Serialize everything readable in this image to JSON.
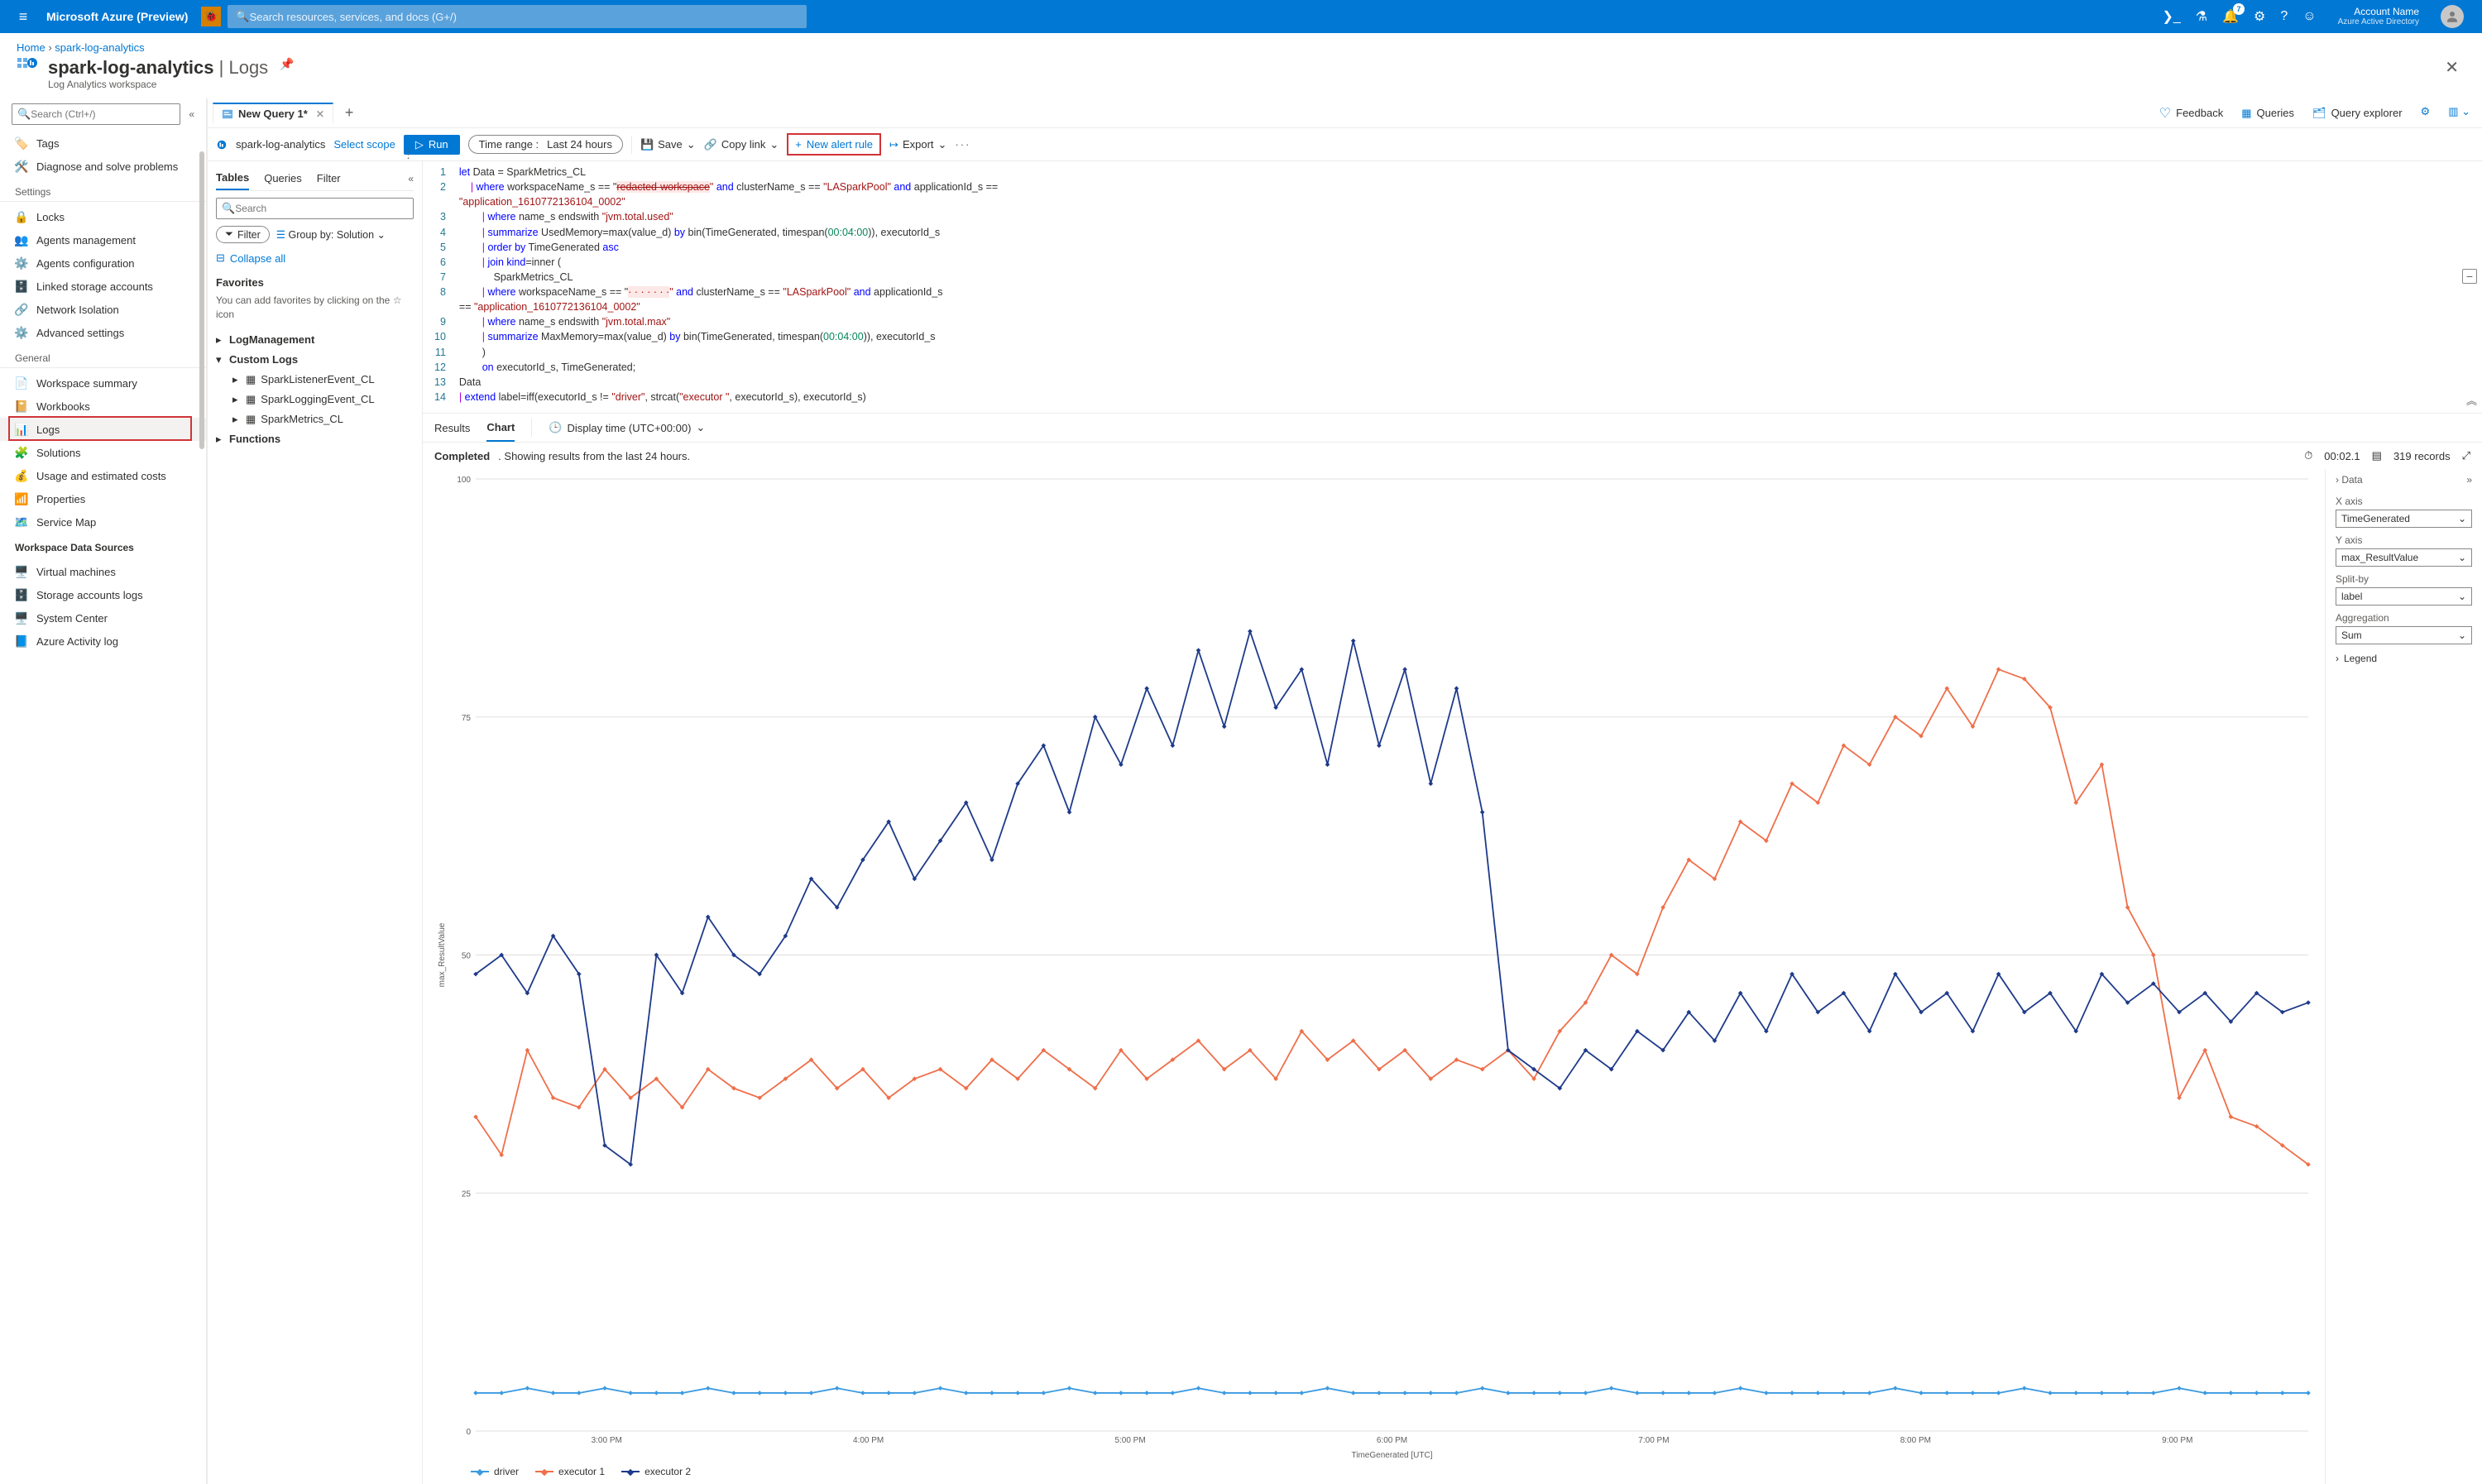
{
  "header": {
    "brand": "Microsoft Azure (Preview)",
    "search_placeholder": "Search resources, services, and docs (G+/)",
    "notification_count": "7",
    "account_name": "Account Name",
    "account_tenant": "Azure Active Directory"
  },
  "breadcrumb": {
    "home": "Home",
    "current": "spark-log-analytics"
  },
  "page": {
    "title_main": "spark-log-analytics",
    "title_sep": "|",
    "title_section": "Logs",
    "subtitle": "Log Analytics workspace"
  },
  "left_nav": {
    "search_placeholder": "Search (Ctrl+/)",
    "items_top": [
      {
        "icon": "🏷️",
        "label": "Tags",
        "color": "#8661c5"
      },
      {
        "icon": "🛠️",
        "label": "Diagnose and solve problems",
        "color": "#323130"
      }
    ],
    "section_settings": "Settings",
    "items_settings": [
      {
        "icon": "🔒",
        "label": "Locks",
        "color": "#0078d4"
      },
      {
        "icon": "👥",
        "label": "Agents management",
        "color": "#0078d4"
      },
      {
        "icon": "⚙️",
        "label": "Agents configuration",
        "color": "#0078d4"
      },
      {
        "icon": "🗄️",
        "label": "Linked storage accounts",
        "color": "#0078d4"
      },
      {
        "icon": "🔗",
        "label": "Network Isolation",
        "color": "#0078d4"
      },
      {
        "icon": "⚙️",
        "label": "Advanced settings",
        "color": "#0078d4"
      }
    ],
    "section_general": "General",
    "items_general": [
      {
        "icon": "📄",
        "label": "Workspace summary"
      },
      {
        "icon": "📔",
        "label": "Workbooks"
      },
      {
        "icon": "📊",
        "label": "Logs",
        "selected": true
      },
      {
        "icon": "🧩",
        "label": "Solutions"
      },
      {
        "icon": "💰",
        "label": "Usage and estimated costs"
      },
      {
        "icon": "📶",
        "label": "Properties"
      },
      {
        "icon": "🗺️",
        "label": "Service Map"
      }
    ],
    "section_data_sources": "Workspace Data Sources",
    "items_data_sources": [
      {
        "icon": "🖥️",
        "label": "Virtual machines"
      },
      {
        "icon": "🗄️",
        "label": "Storage accounts logs"
      },
      {
        "icon": "🖥️",
        "label": "System Center"
      },
      {
        "icon": "📘",
        "label": "Azure Activity log"
      }
    ]
  },
  "query_tab": {
    "label": "New Query 1*"
  },
  "top_right": {
    "feedback": "Feedback",
    "queries": "Queries",
    "explorer": "Query explorer"
  },
  "scope": {
    "workspace": "spark-log-analytics",
    "select_scope": "Select scope",
    "run": "Run",
    "time_label": "Time range :",
    "time_value": "Last 24 hours",
    "save": "Save",
    "copy_link": "Copy link",
    "new_alert": "New alert rule",
    "export": "Export"
  },
  "tables": {
    "tab_tables": "Tables",
    "tab_queries": "Queries",
    "tab_filter": "Filter",
    "search_placeholder": "Search",
    "filter_label": "Filter",
    "groupby_label": "Group by: Solution",
    "collapse_all": "Collapse all",
    "favorites": "Favorites",
    "favorites_note": "You can add favorites by clicking on the ☆ icon",
    "groups": [
      {
        "label": "LogManagement",
        "expanded": false
      },
      {
        "label": "Custom Logs",
        "expanded": true,
        "children": [
          "SparkListenerEvent_CL",
          "SparkLoggingEvent_CL",
          "SparkMetrics_CL"
        ]
      },
      {
        "label": "Functions",
        "expanded": false
      }
    ]
  },
  "editor": {
    "lines": [
      {
        "n": 1,
        "txt": "let Data = SparkMetrics_CL"
      },
      {
        "n": 2,
        "txt": "    | where workspaceName_s == \"<redacted-workspace>\" and clusterName_s == \"LASparkPool\" and applicationId_s == \"application_1610772136104_0002\""
      },
      {
        "n": 3,
        "txt": "        | where name_s endswith \"jvm.total.used\""
      },
      {
        "n": 4,
        "txt": "        | summarize UsedMemory=max(value_d) by bin(TimeGenerated, timespan(00:04:00)), executorId_s"
      },
      {
        "n": 5,
        "txt": "        | order by TimeGenerated asc"
      },
      {
        "n": 6,
        "txt": "        | join kind=inner ("
      },
      {
        "n": 7,
        "txt": "            SparkMetrics_CL"
      },
      {
        "n": 8,
        "txt": "        | where workspaceName_s == \"<redacted-workspace>\" and clusterName_s == \"LASparkPool\" and applicationId_s == \"application_1610772136104_0002\""
      },
      {
        "n": 9,
        "txt": "        | where name_s endswith \"jvm.total.max\""
      },
      {
        "n": 10,
        "txt": "        | summarize MaxMemory=max(value_d) by bin(TimeGenerated, timespan(00:04:00)), executorId_s"
      },
      {
        "n": 11,
        "txt": "        )"
      },
      {
        "n": 12,
        "txt": "        on executorId_s, TimeGenerated;"
      },
      {
        "n": 13,
        "txt": "Data"
      },
      {
        "n": 14,
        "txt": "| extend label=iff(executorId_s != \"driver\", strcat(\"executor \", executorId_s), executorId_s)"
      }
    ]
  },
  "results": {
    "tab_results": "Results",
    "tab_chart": "Chart",
    "display_time": "Display time (UTC+00:00)",
    "completed": "Completed",
    "status_text": ". Showing results from the last 24 hours.",
    "elapsed": "00:02.1",
    "records": "319 records"
  },
  "chart": {
    "type": "line",
    "y_label": "max_ResultValue",
    "x_label": "TimeGenerated [UTC]",
    "ylim": [
      0,
      100
    ],
    "ytick_step": 25,
    "x_ticks": [
      "3:00 PM",
      "4:00 PM",
      "5:00 PM",
      "6:00 PM",
      "7:00 PM",
      "8:00 PM",
      "9:00 PM"
    ],
    "grid_color": "#e1dfdd",
    "background_color": "#ffffff",
    "series": [
      {
        "name": "driver",
        "color": "#3b9ae1",
        "values": [
          4,
          4,
          4.5,
          4,
          4,
          4.5,
          4,
          4,
          4,
          4.5,
          4,
          4,
          4,
          4,
          4.5,
          4,
          4,
          4,
          4.5,
          4,
          4,
          4,
          4,
          4.5,
          4,
          4,
          4,
          4,
          4.5,
          4,
          4,
          4,
          4,
          4.5,
          4,
          4,
          4,
          4,
          4,
          4.5,
          4,
          4,
          4,
          4,
          4.5,
          4,
          4,
          4,
          4,
          4.5,
          4,
          4,
          4,
          4,
          4,
          4.5,
          4,
          4,
          4,
          4,
          4.5,
          4,
          4,
          4,
          4,
          4,
          4.5,
          4,
          4,
          4,
          4,
          4
        ]
      },
      {
        "name": "executor 1",
        "color": "#ef6f4a",
        "values": [
          33,
          29,
          40,
          35,
          34,
          38,
          35,
          37,
          34,
          38,
          36,
          35,
          37,
          39,
          36,
          38,
          35,
          37,
          38,
          36,
          39,
          37,
          40,
          38,
          36,
          40,
          37,
          39,
          41,
          38,
          40,
          37,
          42,
          39,
          41,
          38,
          40,
          37,
          39,
          38,
          40,
          37,
          42,
          45,
          50,
          48,
          55,
          60,
          58,
          64,
          62,
          68,
          66,
          72,
          70,
          75,
          73,
          78,
          74,
          80,
          79,
          76,
          66,
          70,
          55,
          50,
          35,
          40,
          33,
          32,
          30,
          28
        ]
      },
      {
        "name": "executor 2",
        "color": "#1e3a8a",
        "values": [
          48,
          50,
          46,
          52,
          48,
          30,
          28,
          50,
          46,
          54,
          50,
          48,
          52,
          58,
          55,
          60,
          64,
          58,
          62,
          66,
          60,
          68,
          72,
          65,
          75,
          70,
          78,
          72,
          82,
          74,
          84,
          76,
          80,
          70,
          83,
          72,
          80,
          68,
          78,
          65,
          40,
          38,
          36,
          40,
          38,
          42,
          40,
          44,
          41,
          46,
          42,
          48,
          44,
          46,
          42,
          48,
          44,
          46,
          42,
          48,
          44,
          46,
          42,
          48,
          45,
          47,
          44,
          46,
          43,
          46,
          44,
          45
        ]
      }
    ],
    "legend": [
      "driver",
      "executor 1",
      "executor 2"
    ]
  },
  "chart_props": {
    "data_label": "Data",
    "x_axis_label": "X axis",
    "x_axis_value": "TimeGenerated",
    "y_axis_label": "Y axis",
    "y_axis_value": "max_ResultValue",
    "splitby_label": "Split-by",
    "splitby_value": "label",
    "agg_label": "Aggregation",
    "agg_value": "Sum",
    "legend_label": "Legend"
  }
}
